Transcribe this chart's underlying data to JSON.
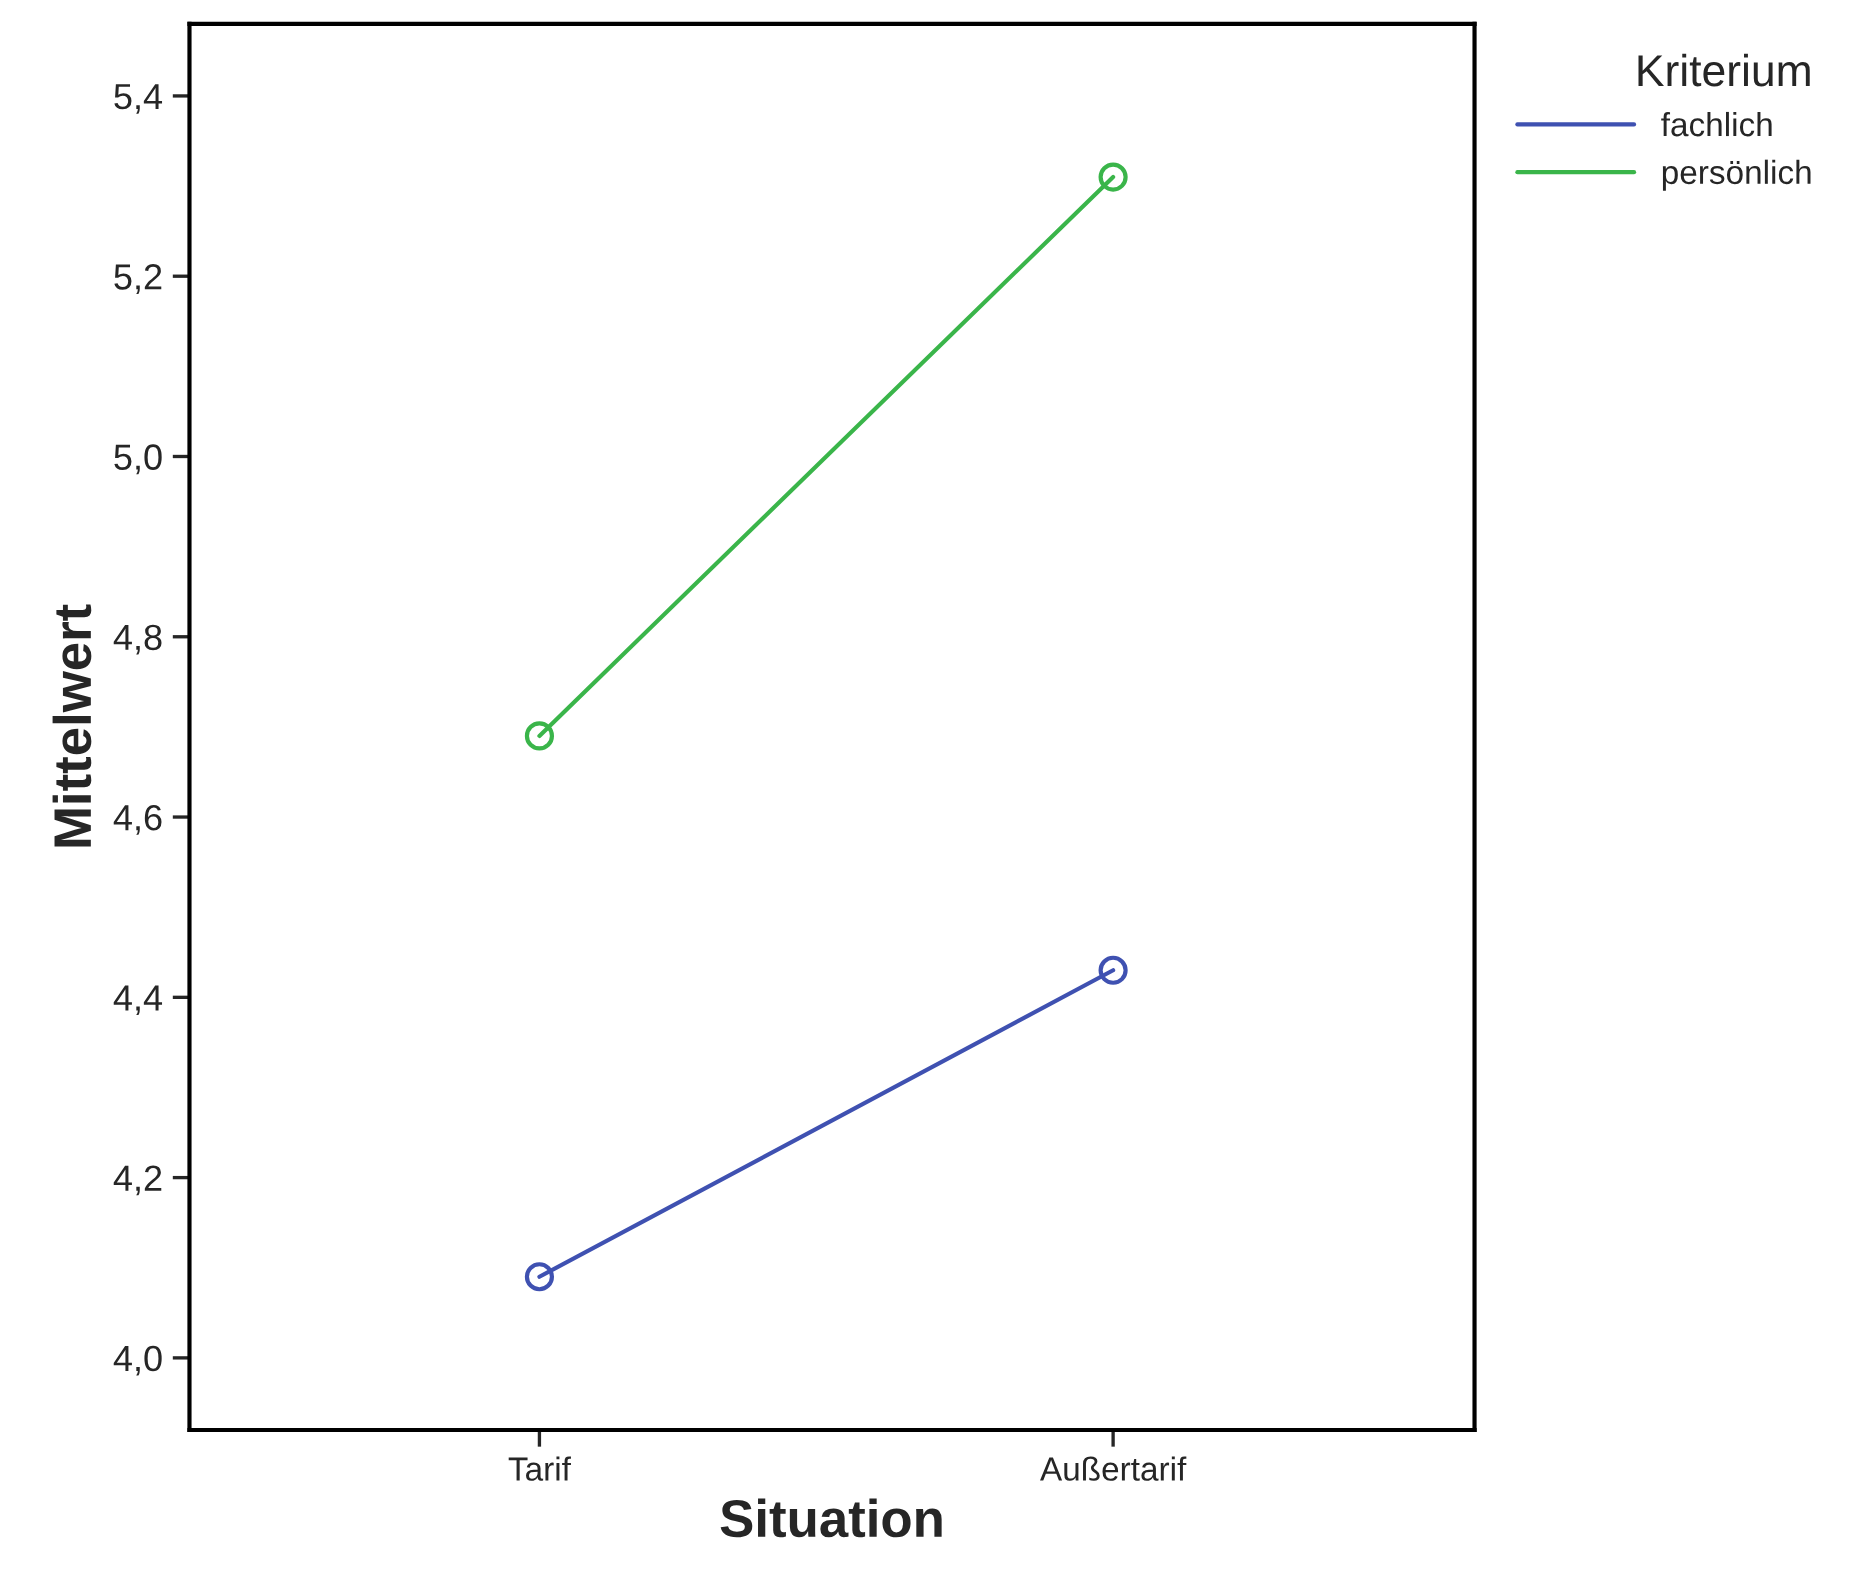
{
  "chart_data": {
    "type": "line",
    "xlabel": "Situation",
    "ylabel": "Mittelwert",
    "legend_title": "Kriterium",
    "categories": [
      "Tarif",
      "Außertarif"
    ],
    "series": [
      {
        "name": "fachlich",
        "color": "#3f51b1",
        "values": [
          4.09,
          4.43
        ]
      },
      {
        "name": "persönlich",
        "color": "#3ab54a",
        "values": [
          4.69,
          5.31
        ]
      }
    ],
    "ylim": [
      3.92,
      5.48
    ],
    "yticks": [
      {
        "value": 4.0,
        "label": "4,0"
      },
      {
        "value": 4.2,
        "label": "4,2"
      },
      {
        "value": 4.4,
        "label": "4,4"
      },
      {
        "value": 4.6,
        "label": "4,6"
      },
      {
        "value": 4.8,
        "label": "4,8"
      },
      {
        "value": 5.0,
        "label": "5,0"
      },
      {
        "value": 5.2,
        "label": "5,2"
      },
      {
        "value": 5.4,
        "label": "5,4"
      }
    ],
    "marker": "circle",
    "line_style": "solid",
    "grid": false,
    "legend": "top right"
  }
}
